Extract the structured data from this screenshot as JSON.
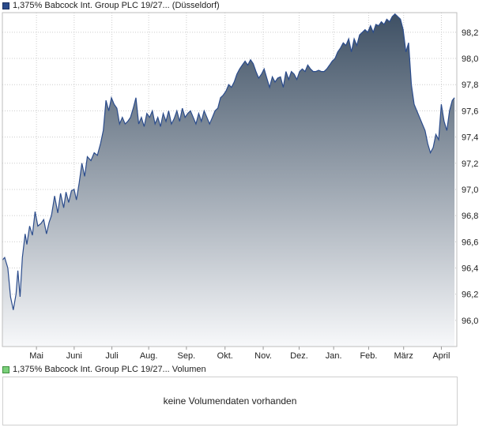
{
  "legend_price": "1,375% Babcock Int. Group PLC 19/27... (Düsseldorf)",
  "legend_volume": "1,375% Babcock Int. Group PLC 19/27... Volumen",
  "volume_message": "keine Volumendaten vorhanden",
  "colors": {
    "line": "#2b4c8c",
    "fill_top": "#3e5064",
    "fill_bottom": "#f7f8fa",
    "grid": "#cccccc"
  },
  "chart_data": {
    "type": "area",
    "title": "1,375% Babcock Int. Group PLC 19/27... (Düsseldorf)",
    "ylim": [
      95.8,
      98.35
    ],
    "y_ticks": [
      96.0,
      96.2,
      96.4,
      96.6,
      96.8,
      97.0,
      97.2,
      97.4,
      97.6,
      97.8,
      98.0,
      98.2
    ],
    "y_tick_labels": [
      "96,0",
      "96,2",
      "96,4",
      "96,6",
      "96,8",
      "97,0",
      "97,2",
      "97,4",
      "97,6",
      "97,8",
      "98,0",
      "98,2"
    ],
    "x_range": [
      0,
      1
    ],
    "x_ticks": [
      0.075,
      0.158,
      0.241,
      0.322,
      0.405,
      0.49,
      0.574,
      0.653,
      0.729,
      0.806,
      0.883,
      0.966
    ],
    "x_tick_labels": [
      "Mai",
      "Juni",
      "Juli",
      "Aug.",
      "Sep.",
      "Okt.",
      "Nov.",
      "Dez.",
      "Jan.",
      "Feb.",
      "März",
      "April"
    ],
    "grid": true,
    "series": [
      {
        "points": [
          [
            0,
            96.46
          ],
          [
            0.005,
            96.48
          ],
          [
            0.012,
            96.4
          ],
          [
            0.018,
            96.18
          ],
          [
            0.024,
            96.08
          ],
          [
            0.03,
            96.2
          ],
          [
            0.034,
            96.38
          ],
          [
            0.039,
            96.18
          ],
          [
            0.044,
            96.48
          ],
          [
            0.05,
            96.66
          ],
          [
            0.054,
            96.58
          ],
          [
            0.06,
            96.72
          ],
          [
            0.066,
            96.65
          ],
          [
            0.072,
            96.83
          ],
          [
            0.078,
            96.72
          ],
          [
            0.085,
            96.74
          ],
          [
            0.091,
            96.77
          ],
          [
            0.097,
            96.66
          ],
          [
            0.103,
            96.75
          ],
          [
            0.108,
            96.8
          ],
          [
            0.115,
            96.95
          ],
          [
            0.122,
            96.82
          ],
          [
            0.128,
            96.97
          ],
          [
            0.135,
            96.86
          ],
          [
            0.14,
            96.98
          ],
          [
            0.146,
            96.9
          ],
          [
            0.152,
            96.99
          ],
          [
            0.158,
            97.0
          ],
          [
            0.163,
            96.92
          ],
          [
            0.169,
            97.05
          ],
          [
            0.175,
            97.2
          ],
          [
            0.181,
            97.1
          ],
          [
            0.187,
            97.25
          ],
          [
            0.195,
            97.22
          ],
          [
            0.202,
            97.28
          ],
          [
            0.209,
            97.26
          ],
          [
            0.216,
            97.35
          ],
          [
            0.222,
            97.45
          ],
          [
            0.228,
            97.68
          ],
          [
            0.234,
            97.6
          ],
          [
            0.24,
            97.7
          ],
          [
            0.246,
            97.65
          ],
          [
            0.252,
            97.62
          ],
          [
            0.258,
            97.5
          ],
          [
            0.264,
            97.55
          ],
          [
            0.27,
            97.5
          ],
          [
            0.276,
            97.52
          ],
          [
            0.282,
            97.55
          ],
          [
            0.288,
            97.62
          ],
          [
            0.294,
            97.7
          ],
          [
            0.3,
            97.5
          ],
          [
            0.306,
            97.55
          ],
          [
            0.312,
            97.48
          ],
          [
            0.318,
            97.58
          ],
          [
            0.324,
            97.55
          ],
          [
            0.33,
            97.6
          ],
          [
            0.336,
            97.5
          ],
          [
            0.342,
            97.55
          ],
          [
            0.348,
            97.48
          ],
          [
            0.354,
            97.58
          ],
          [
            0.36,
            97.52
          ],
          [
            0.366,
            97.6
          ],
          [
            0.372,
            97.5
          ],
          [
            0.378,
            97.54
          ],
          [
            0.384,
            97.6
          ],
          [
            0.39,
            97.52
          ],
          [
            0.396,
            97.62
          ],
          [
            0.402,
            97.55
          ],
          [
            0.408,
            97.58
          ],
          [
            0.414,
            97.6
          ],
          [
            0.42,
            97.55
          ],
          [
            0.426,
            97.5
          ],
          [
            0.432,
            97.58
          ],
          [
            0.438,
            97.52
          ],
          [
            0.444,
            97.6
          ],
          [
            0.45,
            97.55
          ],
          [
            0.456,
            97.5
          ],
          [
            0.462,
            97.55
          ],
          [
            0.468,
            97.6
          ],
          [
            0.474,
            97.62
          ],
          [
            0.48,
            97.7
          ],
          [
            0.486,
            97.72
          ],
          [
            0.492,
            97.75
          ],
          [
            0.498,
            97.8
          ],
          [
            0.504,
            97.78
          ],
          [
            0.51,
            97.82
          ],
          [
            0.516,
            97.88
          ],
          [
            0.522,
            97.92
          ],
          [
            0.528,
            97.95
          ],
          [
            0.534,
            97.98
          ],
          [
            0.54,
            97.95
          ],
          [
            0.546,
            97.99
          ],
          [
            0.552,
            97.96
          ],
          [
            0.558,
            97.9
          ],
          [
            0.564,
            97.85
          ],
          [
            0.57,
            97.88
          ],
          [
            0.576,
            97.92
          ],
          [
            0.582,
            97.85
          ],
          [
            0.588,
            97.78
          ],
          [
            0.594,
            97.86
          ],
          [
            0.6,
            97.82
          ],
          [
            0.606,
            97.85
          ],
          [
            0.612,
            97.86
          ],
          [
            0.618,
            97.78
          ],
          [
            0.624,
            97.9
          ],
          [
            0.63,
            97.84
          ],
          [
            0.636,
            97.9
          ],
          [
            0.642,
            97.88
          ],
          [
            0.648,
            97.84
          ],
          [
            0.654,
            97.9
          ],
          [
            0.66,
            97.92
          ],
          [
            0.666,
            97.9
          ],
          [
            0.672,
            97.95
          ],
          [
            0.678,
            97.92
          ],
          [
            0.684,
            97.9
          ],
          [
            0.69,
            97.9
          ],
          [
            0.696,
            97.91
          ],
          [
            0.702,
            97.9
          ],
          [
            0.708,
            97.9
          ],
          [
            0.714,
            97.92
          ],
          [
            0.72,
            97.95
          ],
          [
            0.726,
            97.98
          ],
          [
            0.732,
            98.0
          ],
          [
            0.738,
            98.05
          ],
          [
            0.744,
            98.08
          ],
          [
            0.75,
            98.12
          ],
          [
            0.756,
            98.1
          ],
          [
            0.762,
            98.15
          ],
          [
            0.768,
            98.05
          ],
          [
            0.774,
            98.15
          ],
          [
            0.78,
            98.1
          ],
          [
            0.786,
            98.18
          ],
          [
            0.792,
            98.2
          ],
          [
            0.798,
            98.22
          ],
          [
            0.804,
            98.2
          ],
          [
            0.81,
            98.25
          ],
          [
            0.816,
            98.2
          ],
          [
            0.822,
            98.26
          ],
          [
            0.828,
            98.25
          ],
          [
            0.834,
            98.28
          ],
          [
            0.84,
            98.26
          ],
          [
            0.846,
            98.3
          ],
          [
            0.852,
            98.28
          ],
          [
            0.858,
            98.32
          ],
          [
            0.864,
            98.34
          ],
          [
            0.87,
            98.32
          ],
          [
            0.876,
            98.3
          ],
          [
            0.882,
            98.22
          ],
          [
            0.888,
            98.05
          ],
          [
            0.894,
            98.12
          ],
          [
            0.9,
            97.8
          ],
          [
            0.906,
            97.65
          ],
          [
            0.912,
            97.6
          ],
          [
            0.918,
            97.55
          ],
          [
            0.924,
            97.5
          ],
          [
            0.93,
            97.45
          ],
          [
            0.936,
            97.35
          ],
          [
            0.942,
            97.28
          ],
          [
            0.948,
            97.32
          ],
          [
            0.954,
            97.42
          ],
          [
            0.96,
            97.38
          ],
          [
            0.966,
            97.65
          ],
          [
            0.972,
            97.52
          ],
          [
            0.978,
            97.45
          ],
          [
            0.984,
            97.6
          ],
          [
            0.99,
            97.68
          ],
          [
            0.995,
            97.7
          ]
        ]
      }
    ]
  }
}
